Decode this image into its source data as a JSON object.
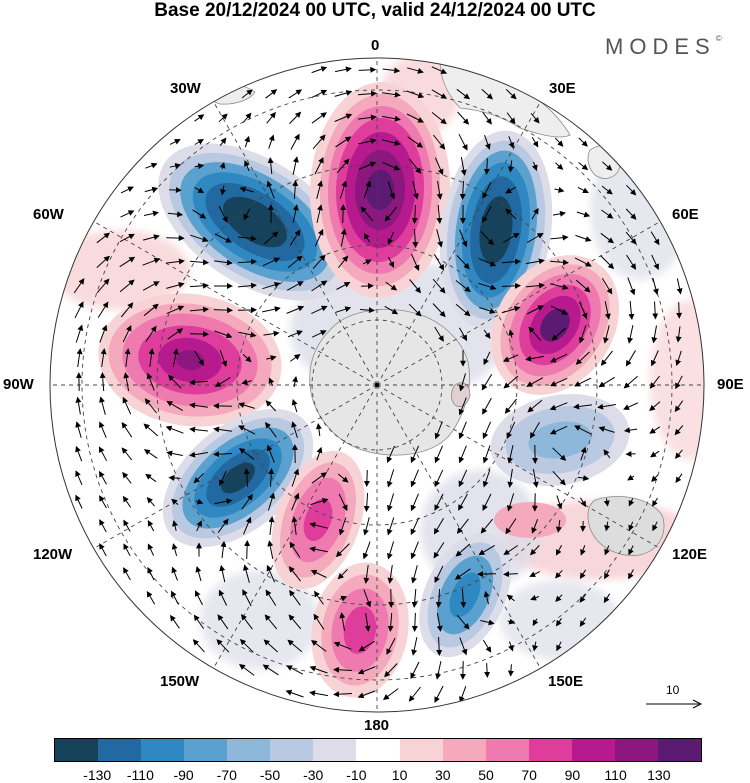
{
  "title": "Base 20/12/2024 00 UTC, valid 24/12/2024 00 UTC",
  "brand": "MODES",
  "brand_mark": "©",
  "longitudes": {
    "n": "0",
    "ne": "30E",
    "e60": "60E",
    "e": "90E",
    "e120": "120E",
    "e150": "150E",
    "s": "180",
    "w150": "150W",
    "w120": "120W",
    "w": "90W",
    "w60": "60W",
    "w30": "30W"
  },
  "reference_vector": "10",
  "colorbar": {
    "colors": [
      "#17425c",
      "#2169a0",
      "#2f88c2",
      "#5aa1cf",
      "#8db8da",
      "#b9c9e2",
      "#dddde9",
      "#ffffff",
      "#f8d3d6",
      "#f4a9bc",
      "#ee7ab0",
      "#de3d9c",
      "#b61a8e",
      "#8c177f",
      "#5c1a73"
    ],
    "ticks": [
      "-130",
      "-110",
      "-90",
      "-70",
      "-50",
      "-30",
      "-10",
      "10",
      "30",
      "50",
      "70",
      "90",
      "110",
      "130"
    ]
  }
}
